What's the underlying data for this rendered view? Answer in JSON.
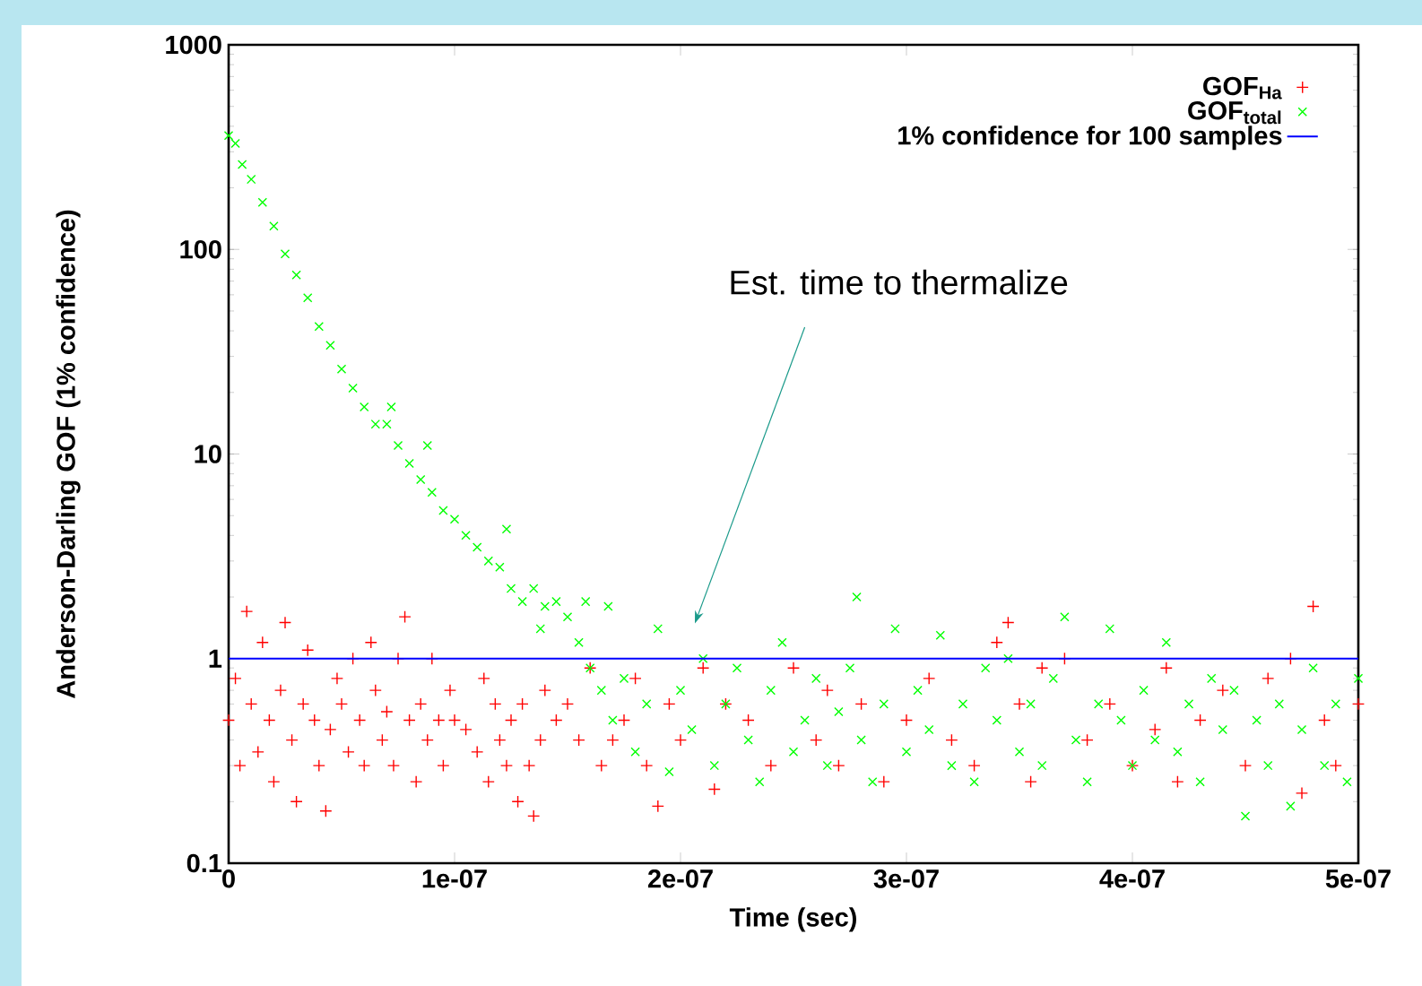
{
  "chart_data": {
    "type": "scatter",
    "xlabel": "Time (sec)",
    "ylabel": "Anderson-Darling GOF (1% confidence)",
    "log": "y",
    "legend": "top right",
    "xlim": [
      0,
      5e-07
    ],
    "ylim": [
      0.1,
      1000
    ],
    "xticks": [
      0,
      {
        "value": 1e-07,
        "label": "1e-07"
      },
      {
        "value": 2e-07,
        "label": "2e-07"
      },
      {
        "value": 3e-07,
        "label": "3e-07"
      },
      {
        "value": 4e-07,
        "label": "4e-07"
      },
      {
        "value": 5e-07,
        "label": "5e-07"
      }
    ],
    "yticks": [
      0.1,
      1,
      10,
      100,
      1000
    ],
    "series": [
      {
        "name": "GOF$_{Ha}$",
        "color": "#ff0000",
        "marker": "plus",
        "x": [
          0,
          3e-09,
          5e-09,
          8e-09,
          1e-08,
          1.3e-08,
          1.5e-08,
          1.8e-08,
          2e-08,
          2.3e-08,
          2.5e-08,
          2.8e-08,
          3e-08,
          3.3e-08,
          3.5e-08,
          3.8e-08,
          4e-08,
          4.3e-08,
          4.5e-08,
          4.8e-08,
          5e-08,
          5.3e-08,
          5.5e-08,
          5.8e-08,
          6e-08,
          6.3e-08,
          6.5e-08,
          6.8e-08,
          7e-08,
          7.3e-08,
          7.5e-08,
          7.8e-08,
          8e-08,
          8.3e-08,
          8.5e-08,
          8.8e-08,
          9e-08,
          9.3e-08,
          9.5e-08,
          9.8e-08,
          1e-07,
          1.05e-07,
          1.1e-07,
          1.13e-07,
          1.15e-07,
          1.18e-07,
          1.2e-07,
          1.23e-07,
          1.25e-07,
          1.28e-07,
          1.3e-07,
          1.33e-07,
          1.35e-07,
          1.38e-07,
          1.4e-07,
          1.45e-07,
          1.5e-07,
          1.55e-07,
          1.6e-07,
          1.65e-07,
          1.7e-07,
          1.75e-07,
          1.8e-07,
          1.85e-07,
          1.9e-07,
          1.95e-07,
          2e-07,
          2.1e-07,
          2.15e-07,
          2.2e-07,
          2.3e-07,
          2.4e-07,
          2.5e-07,
          2.6e-07,
          2.65e-07,
          2.7e-07,
          2.8e-07,
          2.9e-07,
          3e-07,
          3.1e-07,
          3.2e-07,
          3.3e-07,
          3.4e-07,
          3.45e-07,
          3.5e-07,
          3.55e-07,
          3.6e-07,
          3.7e-07,
          3.8e-07,
          3.9e-07,
          4e-07,
          4.1e-07,
          4.15e-07,
          4.2e-07,
          4.3e-07,
          4.4e-07,
          4.5e-07,
          4.6e-07,
          4.7e-07,
          4.75e-07,
          4.8e-07,
          4.85e-07,
          4.9e-07,
          5e-07
        ],
        "values": [
          0.5,
          0.8,
          0.3,
          1.7,
          0.6,
          0.35,
          1.2,
          0.5,
          0.25,
          0.7,
          1.5,
          0.4,
          0.2,
          0.6,
          1.1,
          0.5,
          0.3,
          0.18,
          0.45,
          0.8,
          0.6,
          0.35,
          1.0,
          0.5,
          0.3,
          1.2,
          0.7,
          0.4,
          0.55,
          0.3,
          1.0,
          1.6,
          0.5,
          0.25,
          0.6,
          0.4,
          1.0,
          0.5,
          0.3,
          0.7,
          0.5,
          0.45,
          0.35,
          0.8,
          0.25,
          0.6,
          0.4,
          0.3,
          0.5,
          0.2,
          0.6,
          0.3,
          0.17,
          0.4,
          0.7,
          0.5,
          0.6,
          0.4,
          0.9,
          0.3,
          0.4,
          0.5,
          0.8,
          0.3,
          0.19,
          0.6,
          0.4,
          0.9,
          0.23,
          0.6,
          0.5,
          0.3,
          0.9,
          0.4,
          0.7,
          0.3,
          0.6,
          0.25,
          0.5,
          0.8,
          0.4,
          0.3,
          1.2,
          1.5,
          0.6,
          0.25,
          0.9,
          1.0,
          0.4,
          0.6,
          0.3,
          0.45,
          0.9,
          0.25,
          0.5,
          0.7,
          0.3,
          0.8,
          1.0,
          0.22,
          1.8,
          0.5,
          0.3,
          0.6
        ]
      },
      {
        "name": "GOF$_{total}$",
        "color": "#00ff00",
        "marker": "cross",
        "x": [
          0,
          3e-09,
          6e-09,
          1e-08,
          1.5e-08,
          2e-08,
          2.5e-08,
          3e-08,
          3.5e-08,
          4e-08,
          4.5e-08,
          5e-08,
          5.5e-08,
          6e-08,
          6.5e-08,
          7e-08,
          7.2e-08,
          7.5e-08,
          8e-08,
          8.5e-08,
          8.8e-08,
          9e-08,
          9.5e-08,
          1e-07,
          1.05e-07,
          1.1e-07,
          1.15e-07,
          1.2e-07,
          1.23e-07,
          1.25e-07,
          1.3e-07,
          1.35e-07,
          1.38e-07,
          1.4e-07,
          1.45e-07,
          1.5e-07,
          1.55e-07,
          1.58e-07,
          1.6e-07,
          1.65e-07,
          1.68e-07,
          1.7e-07,
          1.75e-07,
          1.8e-07,
          1.85e-07,
          1.9e-07,
          1.95e-07,
          2e-07,
          2.05e-07,
          2.1e-07,
          2.15e-07,
          2.2e-07,
          2.25e-07,
          2.3e-07,
          2.35e-07,
          2.4e-07,
          2.45e-07,
          2.5e-07,
          2.55e-07,
          2.6e-07,
          2.65e-07,
          2.7e-07,
          2.75e-07,
          2.78e-07,
          2.8e-07,
          2.85e-07,
          2.9e-07,
          2.95e-07,
          3e-07,
          3.05e-07,
          3.1e-07,
          3.15e-07,
          3.2e-07,
          3.25e-07,
          3.3e-07,
          3.35e-07,
          3.4e-07,
          3.45e-07,
          3.5e-07,
          3.55e-07,
          3.6e-07,
          3.65e-07,
          3.7e-07,
          3.75e-07,
          3.8e-07,
          3.85e-07,
          3.9e-07,
          3.95e-07,
          4e-07,
          4.05e-07,
          4.1e-07,
          4.15e-07,
          4.2e-07,
          4.25e-07,
          4.3e-07,
          4.35e-07,
          4.4e-07,
          4.45e-07,
          4.5e-07,
          4.55e-07,
          4.6e-07,
          4.65e-07,
          4.7e-07,
          4.75e-07,
          4.8e-07,
          4.85e-07,
          4.9e-07,
          4.95e-07,
          5e-07
        ],
        "values": [
          360,
          330,
          260,
          220,
          170,
          130,
          95,
          75,
          58,
          42,
          34,
          26,
          21,
          17,
          14,
          14,
          17,
          11,
          9,
          7.5,
          11,
          6.5,
          5.3,
          4.8,
          4,
          3.5,
          3,
          2.8,
          4.3,
          2.2,
          1.9,
          2.2,
          1.4,
          1.8,
          1.9,
          1.6,
          1.2,
          1.9,
          0.9,
          0.7,
          1.8,
          0.5,
          0.8,
          0.35,
          0.6,
          1.4,
          0.28,
          0.7,
          0.45,
          1.0,
          0.3,
          0.6,
          0.9,
          0.4,
          0.25,
          0.7,
          1.2,
          0.35,
          0.5,
          0.8,
          0.3,
          0.55,
          0.9,
          2.0,
          0.4,
          0.25,
          0.6,
          1.4,
          0.35,
          0.7,
          0.45,
          1.3,
          0.3,
          0.6,
          0.25,
          0.9,
          0.5,
          1.0,
          0.35,
          0.6,
          0.3,
          0.8,
          1.6,
          0.4,
          0.25,
          0.6,
          1.4,
          0.5,
          0.3,
          0.7,
          0.4,
          1.2,
          0.35,
          0.6,
          0.25,
          0.8,
          0.45,
          0.7,
          0.17,
          0.5,
          0.3,
          0.6,
          0.19,
          0.45,
          0.9,
          0.3,
          0.6,
          0.25,
          0.8
        ]
      }
    ],
    "ref_lines": [
      {
        "axis": "y",
        "value": 1,
        "label": "1% confidence for 100 samples",
        "color": "#0000ff",
        "line_style": "solid"
      }
    ],
    "annotations": [
      "Est. time to thermalize"
    ]
  }
}
